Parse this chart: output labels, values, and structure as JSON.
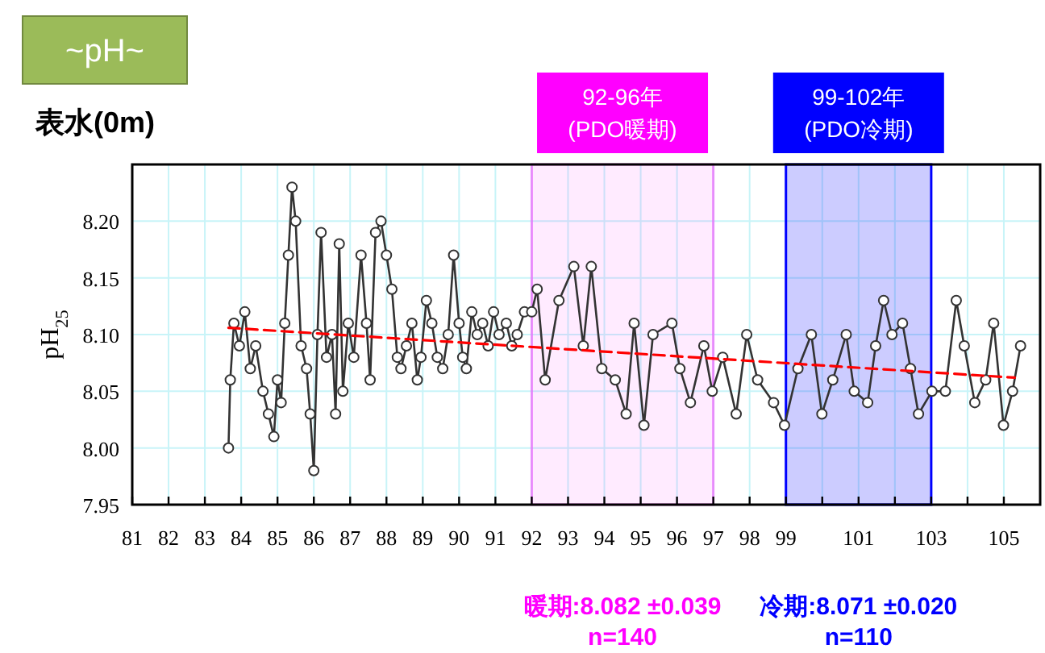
{
  "chart_data": {
    "type": "line",
    "title": "~pH~",
    "subtitle": "表水(0m)",
    "ylabel": "pH$_{25}$",
    "xlim": [
      81,
      106
    ],
    "ylim": [
      7.95,
      8.25
    ],
    "xticks": [
      81,
      82,
      83,
      84,
      85,
      86,
      87,
      88,
      89,
      90,
      91,
      92,
      93,
      94,
      95,
      96,
      97,
      98,
      99,
      {
        "value": 100,
        "label": null
      },
      101,
      {
        "value": 102,
        "label": null
      },
      103,
      {
        "value": 104,
        "label": null
      },
      105
    ],
    "yticks": [
      7.95,
      {
        "value": 8,
        "label": "8.00"
      },
      8.05,
      {
        "value": 8.1,
        "label": "8.10"
      },
      8.15,
      {
        "value": 8.2,
        "label": "8.20"
      }
    ],
    "grid": true,
    "series": [
      {
        "type": "line",
        "color": "#333333",
        "marker": "circle",
        "line_style": "solid",
        "x": [
          83.65,
          83.7,
          83.8,
          83.95,
          84.1,
          84.25,
          84.4,
          84.6,
          84.75,
          84.9,
          85.0,
          85.1,
          85.2,
          85.3,
          85.4,
          85.5,
          85.65,
          85.8,
          85.9,
          86.0,
          86.1,
          86.2,
          86.35,
          86.5,
          86.6,
          86.7,
          86.8,
          86.95,
          87.1,
          87.3,
          87.45,
          87.55,
          87.7,
          87.85,
          88.0,
          88.15,
          88.3,
          88.4,
          88.55,
          88.7,
          88.85,
          88.95,
          89.1,
          89.25,
          89.4,
          89.55,
          89.7,
          89.85,
          90.0,
          90.1,
          90.2,
          90.35,
          90.5,
          90.65,
          90.8,
          90.95,
          91.1,
          91.3,
          91.45,
          91.6,
          91.8,
          92.0,
          92.15,
          92.37,
          92.75,
          93.16,
          93.42,
          93.64,
          93.93,
          94.3,
          94.6,
          94.82,
          95.09,
          95.34,
          95.86,
          96.08,
          96.37,
          96.74,
          96.97,
          97.26,
          97.63,
          97.92,
          98.22,
          98.66,
          98.96,
          99.33,
          99.7,
          99.99,
          100.29,
          100.66,
          100.88,
          101.25,
          101.47,
          101.69,
          101.92,
          102.21,
          102.43,
          102.65,
          103.02,
          103.39,
          103.69,
          103.91,
          104.2,
          104.5,
          104.72,
          104.99,
          105.24,
          105.46
        ],
        "values": [
          8.0,
          8.06,
          8.11,
          8.09,
          8.12,
          8.07,
          8.09,
          8.05,
          8.03,
          8.01,
          8.06,
          8.04,
          8.11,
          8.17,
          8.23,
          8.2,
          8.09,
          8.07,
          8.03,
          7.98,
          8.1,
          8.19,
          8.08,
          8.1,
          8.03,
          8.18,
          8.05,
          8.11,
          8.08,
          8.17,
          8.11,
          8.06,
          8.19,
          8.2,
          8.17,
          8.14,
          8.08,
          8.07,
          8.09,
          8.11,
          8.06,
          8.08,
          8.13,
          8.11,
          8.08,
          8.07,
          8.1,
          8.17,
          8.11,
          8.08,
          8.07,
          8.12,
          8.1,
          8.11,
          8.09,
          8.12,
          8.1,
          8.11,
          8.09,
          8.1,
          8.12,
          8.12,
          8.14,
          8.06,
          8.13,
          8.16,
          8.09,
          8.16,
          8.07,
          8.06,
          8.03,
          8.11,
          8.02,
          8.1,
          8.11,
          8.07,
          8.04,
          8.09,
          8.05,
          8.08,
          8.03,
          8.1,
          8.06,
          8.04,
          8.02,
          8.07,
          8.1,
          8.03,
          8.06,
          8.1,
          8.05,
          8.04,
          8.09,
          8.13,
          8.1,
          8.11,
          8.07,
          8.03,
          8.05,
          8.05,
          8.13,
          8.09,
          8.04,
          8.06,
          8.11,
          8.02,
          8.05,
          8.09
        ]
      },
      {
        "type": "line",
        "color": "#ff0000",
        "marker": "none",
        "line_style": "dashed",
        "x": [
          83.65,
          105.3
        ],
        "values": [
          8.106,
          8.062
        ]
      }
    ],
    "bands": [
      {
        "axis": "x",
        "from": 92,
        "to": 97,
        "label": "92-96年\n(PDO暖期)",
        "color": "#ff00ff"
      },
      {
        "axis": "x",
        "from": 99,
        "to": 103,
        "label": "99-102年\n(PDO冷期)",
        "color": "#0000ff"
      }
    ],
    "annotations": [
      "暖期:8.082 ±0.039\nn=140",
      "冷期:8.071 ±0.020\nn=110"
    ]
  }
}
